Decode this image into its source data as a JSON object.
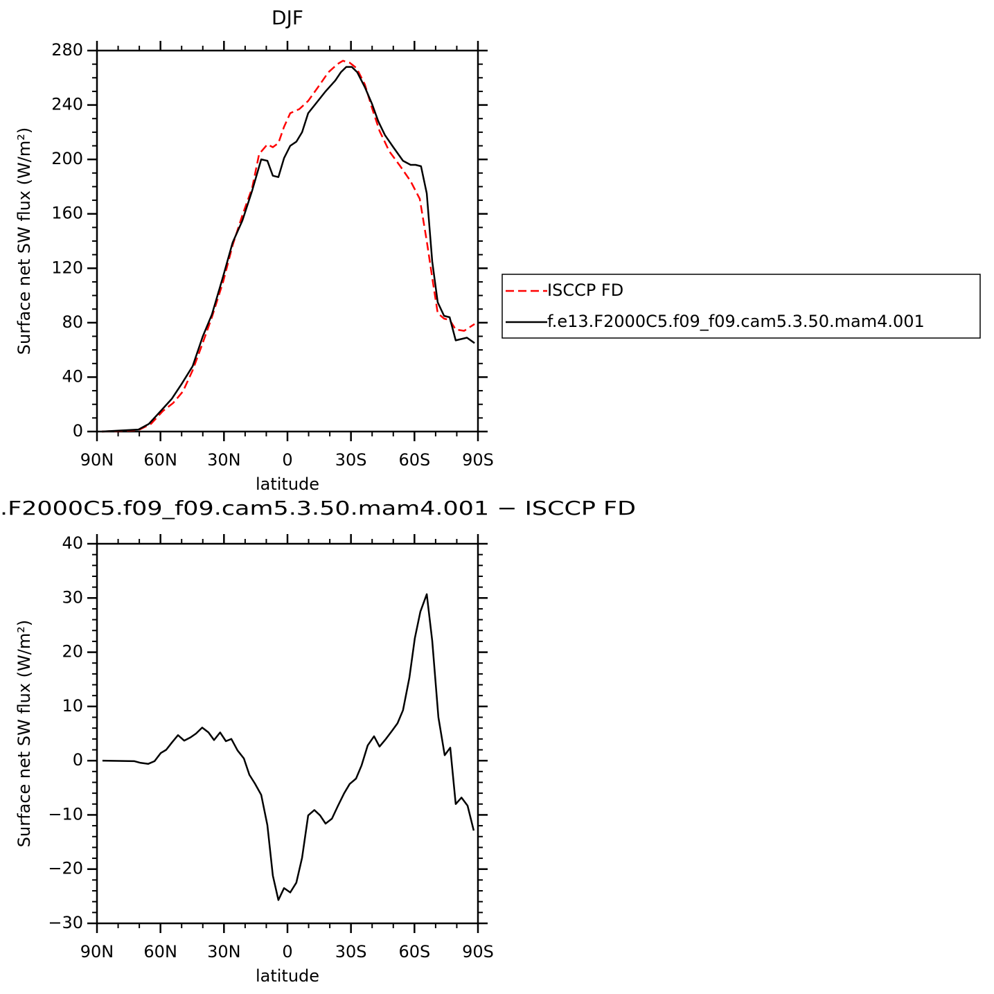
{
  "chart_data": [
    {
      "type": "line",
      "title": "DJF",
      "xlabel": "latitude",
      "ylabel": "Surface net SW flux (W/m²)",
      "xlim": [
        90,
        -90
      ],
      "xticks": [
        {
          "value": 90,
          "label": "90N"
        },
        {
          "value": 60,
          "label": "60N"
        },
        {
          "value": 30,
          "label": "30N"
        },
        0,
        {
          "value": -30,
          "label": "30S"
        },
        {
          "value": -60,
          "label": "60S"
        },
        {
          "value": -90,
          "label": "90S"
        }
      ],
      "xminorticks": [
        80,
        70,
        50,
        40,
        20,
        10,
        -10,
        -20,
        -40,
        -50,
        -70,
        -80
      ],
      "ylim": [
        0,
        280
      ],
      "yticks": [
        0,
        40,
        80,
        120,
        160,
        200,
        240,
        280
      ],
      "yminorticks": [
        10,
        20,
        30,
        50,
        60,
        70,
        90,
        100,
        110,
        130,
        140,
        150,
        170,
        180,
        190,
        210,
        220,
        230,
        250,
        260,
        270
      ],
      "legend": "right",
      "series": [
        {
          "name": "ISCCP FD",
          "color": "#ff0000",
          "line_style": "dashed",
          "x": [
            87.7,
            70.4,
            64.5,
            58.9,
            54,
            49.4,
            44.8,
            40.3,
            35.7,
            30.4,
            25.9,
            21.3,
            16.7,
            13.4,
            9.5,
            6.9,
            4.3,
            1.6,
            -1.3,
            -5.6,
            -9.8,
            -14.4,
            -19.3,
            -23.6,
            -26.2,
            -29.5,
            -32.7,
            -36.6,
            -39.9,
            -43.5,
            -48.1,
            -53.3,
            -58.2,
            -62.5,
            -65.8,
            -68.4,
            -71,
            -74,
            -76.6,
            -79.5,
            -83.5,
            -88.4
          ],
          "values": [
            0,
            1,
            5.6,
            15,
            21,
            29.5,
            45,
            64,
            84,
            110,
            137,
            159,
            179,
            204,
            211,
            209,
            212,
            224,
            234,
            237,
            243,
            253,
            264,
            270,
            272.5,
            271,
            267,
            255,
            238,
            221,
            206,
            195,
            184,
            171,
            140,
            113,
            87,
            83,
            82,
            75,
            74,
            79
          ]
        },
        {
          "name": "f.e13.F2000C5.f09_f09.cam5.3.50.mam4.001",
          "color": "#000000",
          "line_style": "solid",
          "x": [
            87.7,
            70.4,
            65.5,
            60.5,
            54.7,
            50,
            44.8,
            40,
            35.7,
            30.4,
            25.9,
            21.3,
            16.7,
            12.4,
            9.5,
            6.9,
            4.3,
            1.6,
            -1.3,
            -4.2,
            -6.9,
            -9.8,
            -13.4,
            -18,
            -22.6,
            -25.2,
            -27.8,
            -30.4,
            -33,
            -36.6,
            -39.9,
            -42.9,
            -46,
            -50,
            -54.6,
            -58.2,
            -60.5,
            -63.1,
            -65.8,
            -68.4,
            -71,
            -74,
            -76.6,
            -79.5,
            -84.8,
            -88.4
          ],
          "values": [
            0,
            1.5,
            5.6,
            14,
            24,
            35,
            48,
            70,
            86,
            114,
            139,
            155,
            177,
            200,
            199,
            188,
            187,
            201,
            210,
            213,
            220,
            234,
            241,
            250,
            258,
            264,
            268,
            268,
            264,
            253,
            241,
            228,
            218,
            209,
            199,
            196,
            196,
            195,
            175,
            125,
            95,
            85,
            84,
            67,
            69,
            65
          ]
        }
      ]
    },
    {
      "type": "line",
      "title": ".F2000C5.f09_f09.cam5.3.50.mam4.001 − ISCCP FD",
      "xlabel": "latitude",
      "ylabel": "Surface net SW flux (W/m²)",
      "xlim": [
        90,
        -90
      ],
      "xticks": [
        {
          "value": 90,
          "label": "90N"
        },
        {
          "value": 60,
          "label": "60N"
        },
        {
          "value": 30,
          "label": "30N"
        },
        0,
        {
          "value": -30,
          "label": "30S"
        },
        {
          "value": -60,
          "label": "60S"
        },
        {
          "value": -90,
          "label": "90S"
        }
      ],
      "xminorticks": [
        80,
        70,
        50,
        40,
        20,
        10,
        -10,
        -20,
        -40,
        -50,
        -70,
        -80
      ],
      "ylim": [
        -30,
        40
      ],
      "yticks": [
        {
          "value": -30,
          "label": "−30"
        },
        {
          "value": -20,
          "label": "−20"
        },
        {
          "value": -10,
          "label": "−10"
        },
        0,
        10,
        20,
        30,
        40
      ],
      "yminorticks": [
        -28,
        -26,
        -24,
        -22,
        -18,
        -16,
        -14,
        -12,
        -8,
        -6,
        -4,
        -2,
        2,
        4,
        6,
        8,
        12,
        14,
        16,
        18,
        22,
        24,
        26,
        28,
        32,
        34,
        36,
        38
      ],
      "series": [
        {
          "color": "#000000",
          "line_style": "solid",
          "x": [
            87.4,
            72.3,
            69.4,
            65.8,
            62.8,
            59.9,
            57.3,
            54.7,
            51.7,
            48.8,
            45.8,
            43.2,
            40.3,
            37.3,
            34.7,
            31.8,
            29.1,
            26.5,
            23.6,
            20.6,
            18,
            15.4,
            12.4,
            9.5,
            6.9,
            4.3,
            1.6,
            -1.3,
            -4.2,
            -6.9,
            -9.8,
            -12.7,
            -15.4,
            -18,
            -21,
            -23.9,
            -26.8,
            -29.4,
            -32.4,
            -35,
            -37.9,
            -40.9,
            -43.5,
            -46.5,
            -49.4,
            -52,
            -54.6,
            -57.6,
            -60.2,
            -62.8,
            -65.8,
            -68.4,
            -71.3,
            -74.3,
            -76.9,
            -79.5,
            -82.2,
            -85.1,
            -88
          ],
          "values": [
            0,
            -0.1,
            -0.4,
            -0.6,
            -0.1,
            1.4,
            2,
            3.3,
            4.7,
            3.7,
            4.3,
            5,
            6.1,
            5.2,
            3.8,
            5.2,
            3.6,
            4,
            1.9,
            0.4,
            -2.6,
            -4.2,
            -6.3,
            -11.9,
            -21.2,
            -25.7,
            -23.5,
            -24.3,
            -22.5,
            -17.9,
            -10.1,
            -9.1,
            -10.1,
            -11.6,
            -10.7,
            -8.3,
            -6,
            -4.3,
            -3.3,
            -0.9,
            2.8,
            4.5,
            2.6,
            4,
            5.5,
            6.9,
            9.3,
            15.3,
            22.6,
            27.5,
            30.7,
            22.1,
            8,
            1,
            2.4,
            -8,
            -6.8,
            -8.3,
            -12.9
          ]
        }
      ]
    }
  ]
}
